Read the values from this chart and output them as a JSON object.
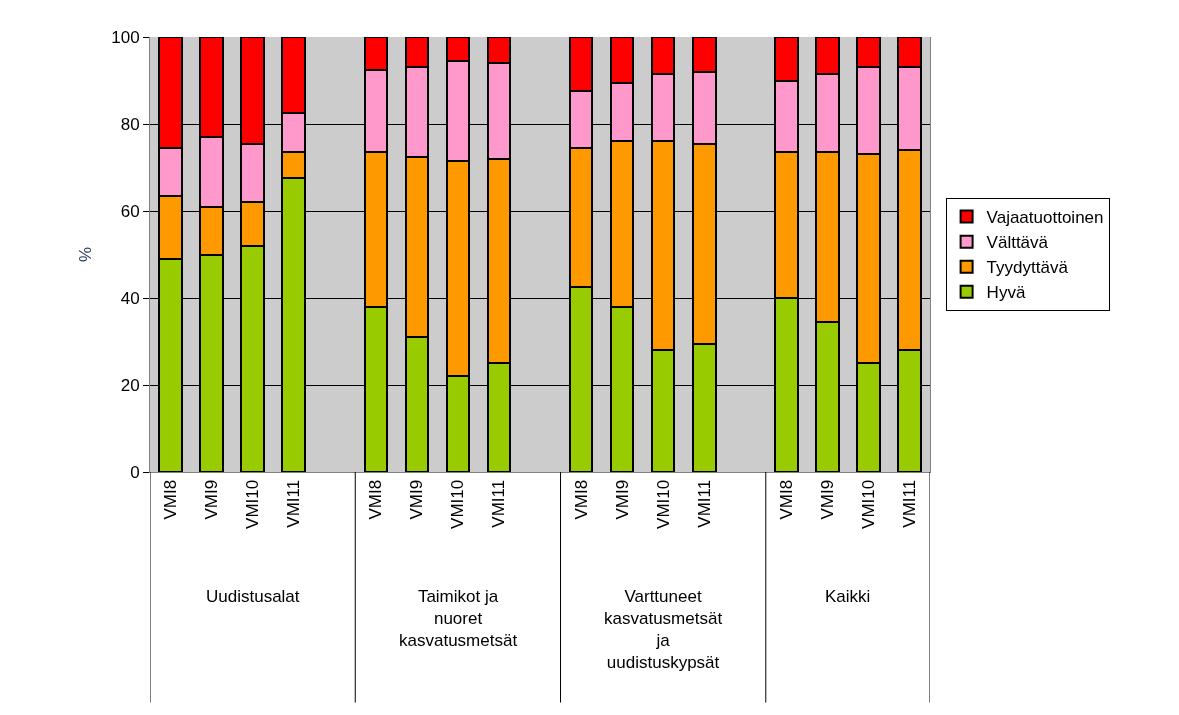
{
  "chart_data": {
    "type": "bar",
    "stacked": true,
    "ylabel": "%",
    "categories": [
      "VMI8",
      "VMI9",
      "VMI10",
      "VMI11",
      null,
      "VMI8",
      "VMI9",
      "VMI10",
      "VMI11",
      null,
      "VMI8",
      "VMI9",
      "VMI10",
      "VMI11",
      null,
      "VMI8",
      "VMI9",
      "VMI10",
      "VMI11"
    ],
    "series": [
      {
        "name": "Hyvä",
        "color": "#99cc00",
        "values": [
          49,
          50,
          52,
          67.5,
          null,
          38,
          31,
          22,
          25,
          null,
          42.5,
          38,
          28,
          29.5,
          null,
          40,
          34.5,
          25,
          28
        ]
      },
      {
        "name": "Tyydyttävä",
        "color": "#ff9900",
        "values": [
          14.5,
          11,
          10,
          6,
          null,
          35.5,
          41.5,
          49.5,
          47,
          null,
          32,
          38,
          48,
          46,
          null,
          33.5,
          39,
          48,
          46
        ]
      },
      {
        "name": "Välttävä",
        "color": "#ff99cc",
        "values": [
          11,
          16,
          13.5,
          9,
          null,
          19,
          20.5,
          23,
          22,
          null,
          13,
          13.5,
          15.5,
          16.5,
          null,
          16.5,
          18,
          20,
          19
        ]
      },
      {
        "name": "Vajaatuottoinen",
        "color": "#ff0000",
        "values": [
          25.5,
          23,
          24.5,
          17.5,
          null,
          7.5,
          7,
          5.5,
          6,
          null,
          12.5,
          10.5,
          8.5,
          8,
          null,
          10,
          8.5,
          7,
          7
        ]
      }
    ],
    "annotations": [
      "Uudistusalat",
      "Taimikot ja nuoret kasvatusmetsät",
      "Varttuneet kasvatusmetsät ja uudistuskypsät",
      "Kaikki"
    ],
    "ylim": [
      0,
      100
    ],
    "yticks": [
      0,
      20,
      40,
      60,
      80,
      100
    ],
    "grid": "y",
    "legend": "right"
  }
}
